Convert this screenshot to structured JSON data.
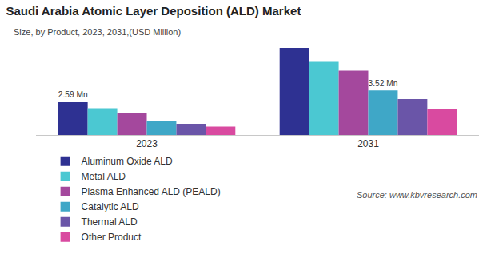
{
  "chart_data": {
    "type": "bar",
    "title": "Saudi Arabia Atomic Layer Deposition (ALD) Market",
    "subtitle": "Size, by Product, 2023, 2031,(USD Million)",
    "source": "Source: www.kbvresearch.com",
    "categories": [
      "2023",
      "2031"
    ],
    "series": [
      {
        "name": "Aluminum Oxide ALD",
        "color": "#2E3192",
        "values": [
          2.59,
          6.89
        ]
      },
      {
        "name": "Metal ALD",
        "color": "#4BC8D2",
        "values": [
          2.12,
          5.85
        ]
      },
      {
        "name": "Plasma Enhanced ALD (PEALD)",
        "color": "#A4489D",
        "values": [
          1.71,
          5.08
        ]
      },
      {
        "name": "Catalytic ALD",
        "color": "#3FA7C7",
        "values": [
          1.09,
          3.52
        ]
      },
      {
        "name": "Thermal ALD",
        "color": "#6A55A8",
        "values": [
          0.88,
          2.85
        ]
      },
      {
        "name": "Other Product",
        "color": "#D94AA0",
        "values": [
          0.67,
          2.02
        ]
      }
    ],
    "annotations": [
      {
        "text": "2.59 Mn",
        "category": "2023",
        "series": "Aluminum Oxide ALD"
      },
      {
        "text": "3.52 Mn",
        "category": "2031",
        "series": "Catalytic ALD"
      }
    ],
    "ylim": [
      0,
      7.2
    ],
    "grid": false,
    "legend": "bottom",
    "tick_labels": "x"
  }
}
